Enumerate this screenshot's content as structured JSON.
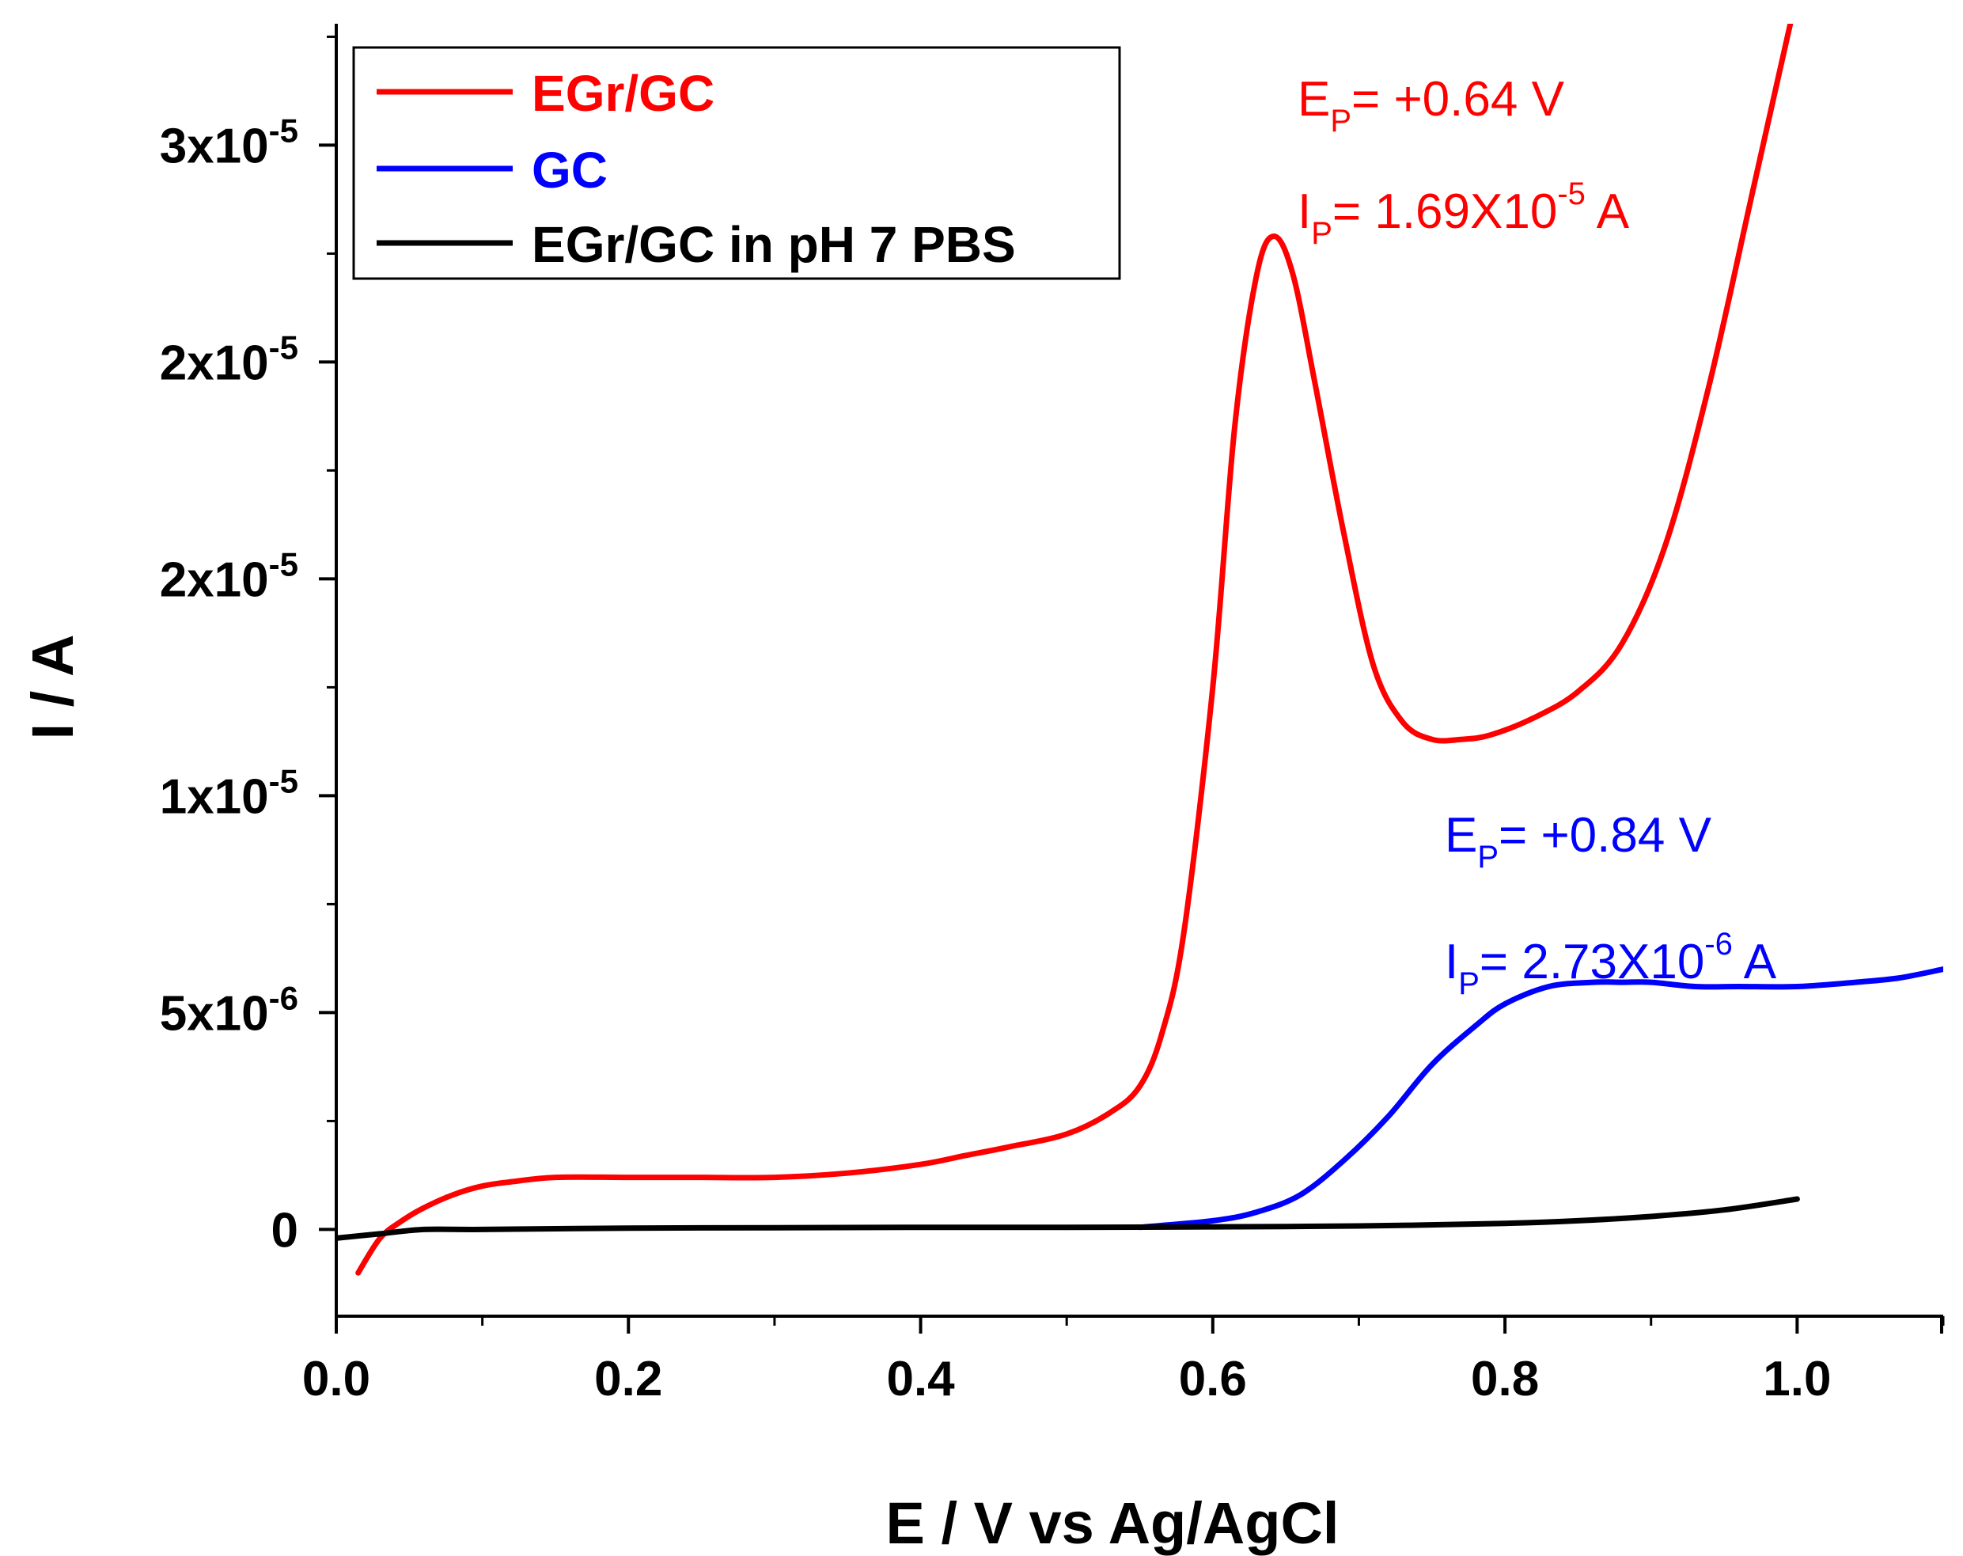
{
  "chart_data": {
    "type": "line",
    "xlabel": "E / V vs Ag/AgCl",
    "ylabel": "I / A",
    "xlim": [
      0.0,
      1.1
    ],
    "ylim": [
      -2e-06,
      2.78e-05
    ],
    "x_ticks": [
      {
        "value": 0.0,
        "label": "0.0"
      },
      {
        "value": 0.2,
        "label": "0.2"
      },
      {
        "value": 0.4,
        "label": "0.4"
      },
      {
        "value": 0.6,
        "label": "0.6"
      },
      {
        "value": 0.8,
        "label": "0.8"
      },
      {
        "value": 1.0,
        "label": "1.0"
      }
    ],
    "y_ticks": [
      {
        "value": 0.0,
        "mantissa": "0",
        "exponent": ""
      },
      {
        "value": 5e-06,
        "mantissa": "5x10",
        "exponent": "-6"
      },
      {
        "value": 1e-05,
        "mantissa": "1x10",
        "exponent": "-5"
      },
      {
        "value": 1.5e-05,
        "mantissa": "2x10",
        "exponent": "-5"
      },
      {
        "value": 2e-05,
        "mantissa": "2x10",
        "exponent": "-5"
      },
      {
        "value": 2.5e-05,
        "mantissa": "3x10",
        "exponent": "-5"
      }
    ],
    "legend_position": "top-left",
    "series": [
      {
        "name": "EGr/GC",
        "color": "#ff0000",
        "x": [
          0.015,
          0.03,
          0.045,
          0.06,
          0.08,
          0.1,
          0.12,
          0.15,
          0.2,
          0.25,
          0.3,
          0.35,
          0.4,
          0.43,
          0.46,
          0.5,
          0.53,
          0.55,
          0.565,
          0.58,
          0.6,
          0.615,
          0.63,
          0.642,
          0.655,
          0.67,
          0.69,
          0.71,
          0.73,
          0.75,
          0.77,
          0.79,
          0.82,
          0.85,
          0.88,
          0.91,
          0.94,
          0.97,
          1.0
        ],
        "y": [
          -1e-06,
          -2e-07,
          2e-07,
          5e-07,
          8e-07,
          1e-06,
          1.1e-06,
          1.2e-06,
          1.2e-06,
          1.2e-06,
          1.2e-06,
          1.3e-06,
          1.5e-06,
          1.7e-06,
          1.9e-06,
          2.2e-06,
          2.7e-06,
          3.3e-06,
          4.5e-06,
          6.8e-06,
          1.25e-05,
          1.85e-05,
          2.2e-05,
          2.29e-05,
          2.2e-05,
          1.95e-05,
          1.6e-05,
          1.3e-05,
          1.17e-05,
          1.13e-05,
          1.13e-05,
          1.14e-05,
          1.18e-05,
          1.24e-05,
          1.35e-05,
          1.58e-05,
          1.95e-05,
          2.4e-05,
          2.85e-05
        ]
      },
      {
        "name": "GC",
        "color": "#0000ff",
        "x": [
          0.55,
          0.6,
          0.63,
          0.66,
          0.69,
          0.72,
          0.75,
          0.78,
          0.8,
          0.83,
          0.86,
          0.88,
          0.9,
          0.93,
          0.96,
          1.0,
          1.04,
          1.07,
          1.1
        ],
        "y": [
          5e-08,
          2e-07,
          4e-07,
          8e-07,
          1.6e-06,
          2.6e-06,
          3.8e-06,
          4.7e-06,
          5.2e-06,
          5.6e-06,
          5.7e-06,
          5.7e-06,
          5.7e-06,
          5.6e-06,
          5.6e-06,
          5.6e-06,
          5.7e-06,
          5.8e-06,
          6e-06
        ]
      },
      {
        "name": "EGr/GC in pH 7 PBS",
        "color": "#000000",
        "x": [
          0.0,
          0.03,
          0.06,
          0.1,
          0.2,
          0.3,
          0.4,
          0.5,
          0.6,
          0.7,
          0.8,
          0.85,
          0.9,
          0.95,
          1.0
        ],
        "y": [
          -2e-07,
          -1e-07,
          0.0,
          0.0,
          3e-08,
          4e-08,
          5e-08,
          5e-08,
          6e-08,
          8e-08,
          1.4e-07,
          2e-07,
          3e-07,
          4.5e-07,
          7e-07
        ]
      }
    ],
    "annotations": [
      {
        "main": "E",
        "sub": "P",
        "text": "= +0.64 V",
        "color": "#ff0000"
      },
      {
        "main": "I",
        "sub": "P",
        "text": "= 1.69X10",
        "sup": "-5",
        "tail": " A",
        "color": "#ff0000"
      },
      {
        "main": "E",
        "sub": "P",
        "text": "= +0.84 V",
        "color": "#0000ff"
      },
      {
        "main": "I",
        "sub": "P",
        "text": "= 2.73X10",
        "sup": "-6",
        "tail": " A",
        "color": "#0000ff"
      }
    ]
  }
}
